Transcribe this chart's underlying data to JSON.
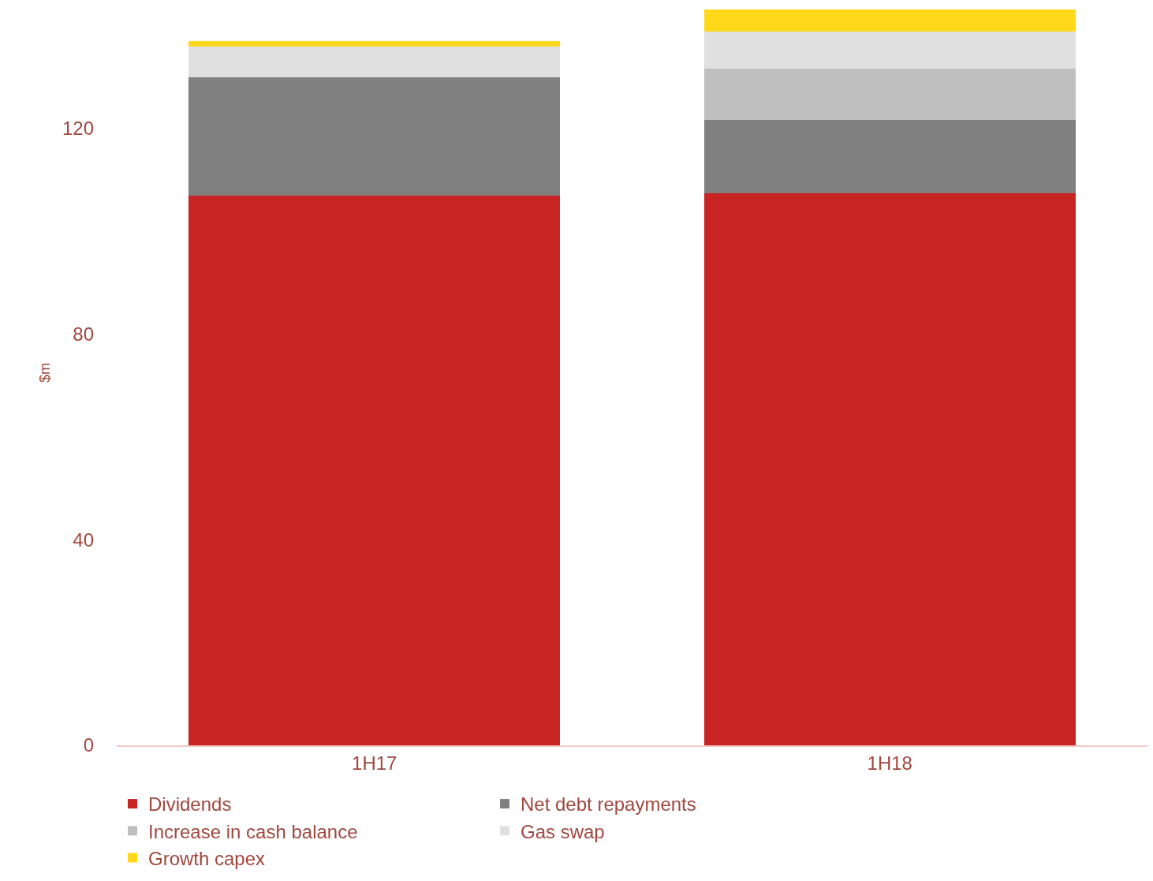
{
  "chart_data": {
    "type": "bar",
    "stacked": true,
    "ylabel": "$m",
    "categories": [
      "1H17",
      "1H18"
    ],
    "series": [
      {
        "name": "Dividends",
        "color": "#c82423",
        "values": [
          107,
          107.4
        ]
      },
      {
        "name": "Net debt repayments",
        "color": "#808080",
        "values": [
          23,
          14.3
        ]
      },
      {
        "name": "Increase in cash balance",
        "color": "#bfbfbf",
        "values": [
          0,
          10
        ]
      },
      {
        "name": "Gas swap",
        "color": "#e0e0e0",
        "values": [
          6,
          7.1
        ]
      },
      {
        "name": "Growth capex",
        "color": "#ffd81a",
        "values": [
          1,
          4.3
        ]
      }
    ],
    "ylim": [
      0,
      145
    ],
    "yticks": [
      0,
      40,
      80,
      120
    ],
    "grid": false,
    "legend": "bottom"
  }
}
